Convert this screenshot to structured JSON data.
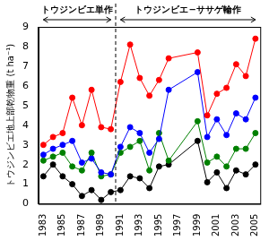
{
  "chart_data": {
    "type": "line",
    "y_label": "トウジンビエ地上部乾物重 (t ha⁻¹)",
    "x": [
      1983,
      1984,
      1985,
      1986,
      1987,
      1988,
      1989,
      1990,
      1991,
      1992,
      1993,
      1994,
      1995,
      1996,
      1999,
      2000,
      2001,
      2002,
      2003,
      2004,
      2005
    ],
    "xlim": [
      1982.5,
      2005.5
    ],
    "xticks": [
      1983,
      1985,
      1987,
      1989,
      1991,
      1993,
      1995,
      1997,
      1999,
      2001,
      2003,
      2005
    ],
    "ylim": [
      0,
      9
    ],
    "yticks": [
      0,
      1,
      2,
      3,
      4,
      5,
      6,
      7,
      8,
      9
    ],
    "grid": false,
    "series": [
      {
        "color": "#ff0000",
        "marker": "circle",
        "values": [
          3.0,
          3.4,
          3.6,
          5.4,
          4.0,
          5.8,
          3.9,
          3.8,
          6.2,
          8.1,
          6.4,
          5.5,
          6.3,
          7.4,
          7.7,
          4.5,
          5.6,
          5.9,
          7.1,
          6.5,
          8.4
        ]
      },
      {
        "color": "#0000ff",
        "marker": "circle",
        "values": [
          2.5,
          2.8,
          3.0,
          3.2,
          2.1,
          2.3,
          1.6,
          1.5,
          2.9,
          3.9,
          3.6,
          2.6,
          3.3,
          5.8,
          6.7,
          3.4,
          4.3,
          3.5,
          4.6,
          4.3,
          5.4
        ]
      },
      {
        "color": "#008000",
        "marker": "circle",
        "values": [
          2.2,
          2.4,
          2.6,
          1.9,
          1.7,
          2.6,
          1.4,
          1.5,
          2.6,
          2.9,
          3.2,
          1.7,
          3.6,
          2.2,
          4.2,
          2.1,
          2.4,
          1.9,
          2.8,
          2.8,
          3.6
        ]
      },
      {
        "color": "#000000",
        "marker": "circle",
        "values": [
          1.4,
          2.0,
          1.4,
          1.0,
          0.4,
          0.7,
          0.2,
          0.6,
          0.7,
          1.4,
          1.3,
          0.8,
          1.9,
          2.0,
          3.2,
          1.1,
          1.6,
          0.8,
          1.7,
          1.5,
          2.0
        ]
      }
    ],
    "annotations": [
      {
        "text": "トウジンビエ単作",
        "from": 1983,
        "to": 1990
      },
      {
        "text": "トウジンビエ−ササゲ輪作",
        "from": 1991,
        "to": 2005
      }
    ]
  }
}
